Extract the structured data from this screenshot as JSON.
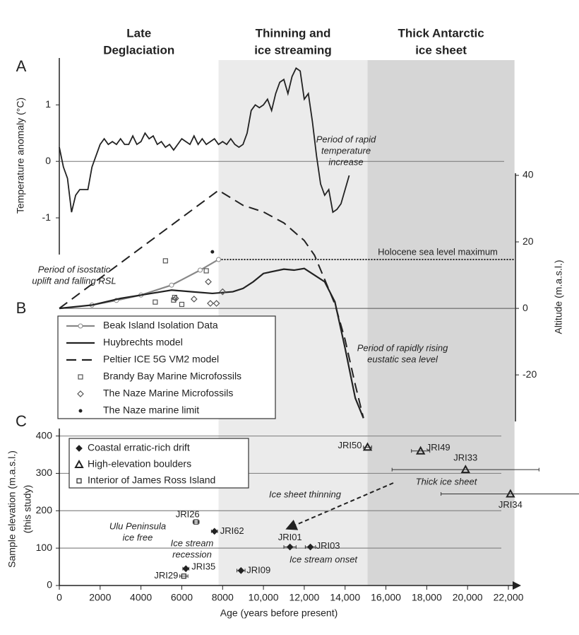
{
  "phases": [
    {
      "label": [
        "Late",
        "Deglaciation"
      ],
      "start": 0,
      "end": 7800,
      "color": "#ffffff"
    },
    {
      "label": [
        "Thinning and",
        "ice streaming"
      ],
      "start": 7800,
      "end": 15100,
      "color": "#ebebeb"
    },
    {
      "label": [
        "Thick Antarctic",
        "ice sheet"
      ],
      "start": 15100,
      "end": 22300,
      "color": "#d6d6d6"
    }
  ],
  "chart_data": [
    {
      "panel": "A",
      "type": "line",
      "ylabel": "Temperature anomaly (°C)",
      "xlim": [
        0,
        22000
      ],
      "ylim": [
        -1.65,
        1.83
      ],
      "yticks": [
        -1,
        0,
        1
      ],
      "series": [
        {
          "color": "#222222",
          "x": [
            0,
            200,
            400,
            600,
            800,
            1000,
            1200,
            1400,
            1600,
            1800,
            2000,
            2200,
            2400,
            2600,
            2800,
            3000,
            3200,
            3400,
            3600,
            3800,
            4000,
            4200,
            4400,
            4600,
            4800,
            5000,
            5200,
            5400,
            5600,
            5800,
            6000,
            6200,
            6400,
            6600,
            6800,
            7000,
            7200,
            7400,
            7600,
            7800,
            8000,
            8200,
            8400,
            8600,
            8800,
            9000,
            9200,
            9400,
            9600,
            9800,
            10000,
            10200,
            10400,
            10600,
            10800,
            11000,
            11200,
            11400,
            11600,
            11800,
            12000,
            12200,
            12400,
            12600,
            12800,
            13000,
            13200,
            13400,
            13600,
            13800,
            14000,
            14200
          ],
          "values": [
            0.25,
            -0.1,
            -0.3,
            -0.9,
            -0.6,
            -0.5,
            -0.5,
            -0.5,
            -0.1,
            0.1,
            0.3,
            0.4,
            0.3,
            0.35,
            0.3,
            0.4,
            0.3,
            0.3,
            0.45,
            0.3,
            0.35,
            0.5,
            0.4,
            0.45,
            0.3,
            0.35,
            0.25,
            0.3,
            0.2,
            0.3,
            0.4,
            0.35,
            0.3,
            0.45,
            0.3,
            0.4,
            0.3,
            0.35,
            0.4,
            0.3,
            0.35,
            0.3,
            0.4,
            0.3,
            0.25,
            0.3,
            0.5,
            0.9,
            1.0,
            0.95,
            1.0,
            1.1,
            0.9,
            1.2,
            1.4,
            1.45,
            1.2,
            1.5,
            1.65,
            1.6,
            1.1,
            1.2,
            0.7,
            0.1,
            -0.4,
            -0.6,
            -0.5,
            -0.9,
            -0.85,
            -0.75,
            -0.5,
            -0.25
          ]
        }
      ],
      "annotations": [
        {
          "lines": [
            "Period of rapid",
            "temperature",
            "increase"
          ]
        }
      ]
    },
    {
      "panel": "B",
      "type": "line",
      "ylabel": "Altitude (m.a.s.l.)",
      "xlim": [
        0,
        22000
      ],
      "ylim": [
        -34,
        40
      ],
      "yticks": [
        -20,
        0,
        20,
        40
      ],
      "reference": {
        "label": "Holocene sea level maximum",
        "value": 14.7,
        "start": 7800
      },
      "annotations": [
        {
          "lines": [
            "Period of isostatic",
            "uplift and falling RSL"
          ]
        },
        {
          "lines": [
            "Period of rapidly rising",
            "eustatic sea level"
          ]
        }
      ],
      "series": [
        {
          "name": "Beak Island Isolation Data",
          "color": "#888888",
          "style": "line",
          "marker": "circle",
          "x": [
            1600,
            2800,
            4000,
            5500,
            6900,
            7800
          ],
          "values": [
            1,
            2.4,
            4,
            7,
            11.5,
            14.7
          ]
        },
        {
          "name": "Huybrechts model",
          "color": "#222222",
          "style": "line",
          "x": [
            0,
            1600,
            3000,
            4500,
            5500,
            6500,
            7500,
            8500,
            9000,
            9500,
            10000,
            11000,
            11500,
            12000,
            12500,
            13000,
            13500,
            14000,
            14500,
            14900
          ],
          "values": [
            0,
            1,
            3,
            4.5,
            5.5,
            5,
            4.5,
            5,
            6,
            8,
            10.5,
            11.8,
            11.5,
            12,
            10,
            8,
            2,
            -12,
            -27,
            -33
          ]
        },
        {
          "name": "Peltier ICE 5G VM2 model",
          "color": "#222222",
          "style": "dashed",
          "x": [
            0,
            7800,
            9000,
            10000,
            11000,
            12000,
            12500,
            13000,
            13500,
            14000,
            14500,
            14900
          ],
          "values": [
            0,
            35.5,
            31,
            29,
            25.7,
            20.4,
            16,
            8.7,
            1.3,
            -9.4,
            -23,
            -33
          ]
        },
        {
          "name": "Brandy Bay Marine Microfossils",
          "color": "#555555",
          "style": "markers",
          "marker": "square",
          "x": [
            4700,
            5200,
            5600,
            5650,
            6000,
            7200
          ],
          "values": [
            1.9,
            14.3,
            2.5,
            3.3,
            1.2,
            11.3
          ]
        },
        {
          "name": "The Naze Marine Microfossils",
          "color": "#555555",
          "style": "markers",
          "marker": "diamond",
          "x": [
            5700,
            6600,
            7400,
            7700,
            7300,
            8000
          ],
          "values": [
            3,
            2.8,
            1.5,
            1.5,
            8,
            5
          ]
        },
        {
          "name": "The Naze marine limit",
          "color": "#222222",
          "style": "markers",
          "marker": "dot",
          "x": [
            7500
          ],
          "values": [
            17
          ]
        }
      ]
    },
    {
      "panel": "C",
      "type": "scatter",
      "xlabel": "Age (years before present)",
      "ylabel": [
        "Sample elevation (m.a.s.l.)",
        "(this study)"
      ],
      "xlim": [
        0,
        22000
      ],
      "ylim": [
        0,
        420
      ],
      "xticks": [
        0,
        2000,
        4000,
        6000,
        8000,
        {
          "value": 10000,
          "label": "10,000"
        },
        {
          "value": 12000,
          "label": "12,000"
        },
        {
          "value": 14000,
          "label": "14,000"
        },
        {
          "value": 16000,
          "label": "16,000"
        },
        {
          "value": 18000,
          "label": "18,000"
        },
        {
          "value": 20000,
          "label": "20,000"
        },
        {
          "value": 22000,
          "label": "22,000"
        }
      ],
      "yticks": [
        0,
        100,
        200,
        300,
        400
      ],
      "grid": true,
      "series": [
        {
          "name": "Coastal erratic-rich drift",
          "color": "#222222",
          "marker": "diamond-filled",
          "labels": [
            "JRI62",
            "JRI01",
            "JRI03",
            "JRI09",
            "JRI35"
          ],
          "x": [
            7600,
            11300,
            12300,
            8900,
            6200
          ],
          "values": [
            145,
            103,
            103,
            40,
            45
          ],
          "xerr": [
            150,
            300,
            250,
            200,
            150
          ]
        },
        {
          "name": "High-elevation boulders",
          "color": "#222222",
          "marker": "triangle",
          "labels": [
            "JRI50",
            "JRI49",
            "JRI33",
            "JRI34"
          ],
          "x": [
            15100,
            17700,
            19900,
            22100
          ],
          "values": [
            370,
            360,
            310,
            245
          ],
          "xerr": [
            200,
            450,
            3600,
            3400
          ]
        },
        {
          "name": "Interior of James Ross Island",
          "color": "#222222",
          "marker": "square",
          "labels": [
            "JRI26",
            "JRI29"
          ],
          "x": [
            6700,
            6100
          ],
          "values": [
            170,
            25
          ],
          "xerr": [
            150,
            200
          ]
        }
      ],
      "annotations": [
        {
          "lines": [
            "Ice sheet thinning"
          ]
        },
        {
          "lines": [
            "Thick ice sheet"
          ]
        },
        {
          "lines": [
            "Ulu Peninsula",
            "ice free"
          ]
        },
        {
          "lines": [
            "Ice stream",
            "recession"
          ]
        },
        {
          "lines": [
            "Ice stream onset"
          ]
        }
      ]
    }
  ]
}
